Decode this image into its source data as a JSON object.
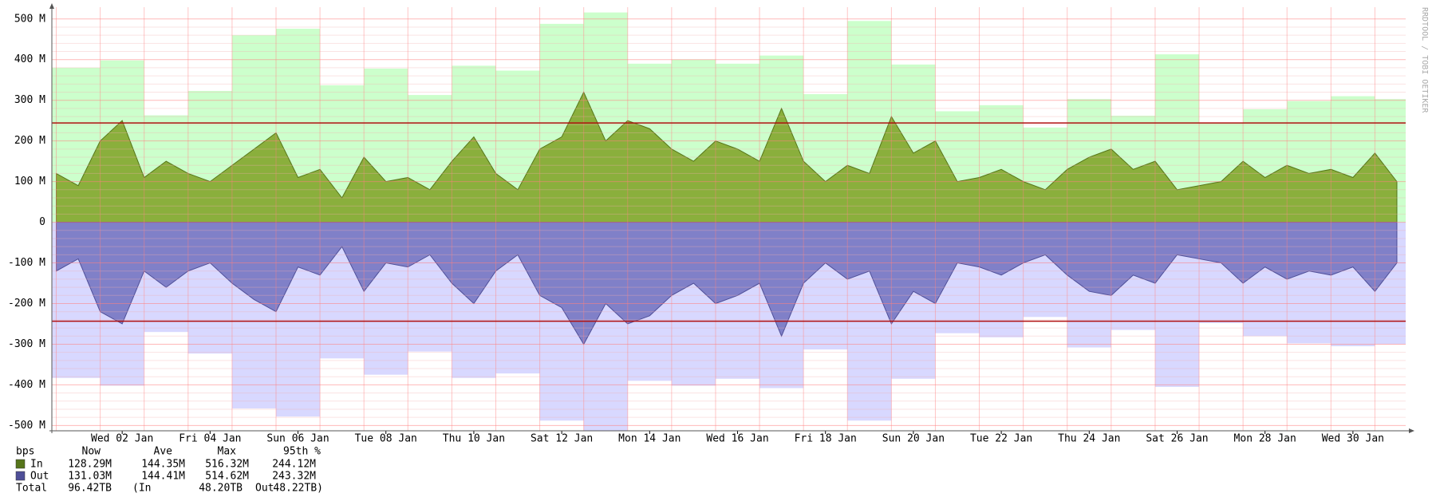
{
  "chart_data": {
    "type": "area",
    "watermark": "RRDTOOL / TOBI OETIKER",
    "xlim": [
      0.9,
      31.7
    ],
    "ylim": [
      -513,
      529
    ],
    "yticks": [
      {
        "value": 500,
        "label": "500 M"
      },
      {
        "value": 400,
        "label": "400 M"
      },
      {
        "value": 300,
        "label": "300 M"
      },
      {
        "value": 200,
        "label": "200 M"
      },
      {
        "value": 100,
        "label": "100 M"
      },
      0,
      {
        "value": -100,
        "label": "-100 M"
      },
      {
        "value": -200,
        "label": "-200 M"
      },
      {
        "value": -300,
        "label": "-300 M"
      },
      {
        "value": -400,
        "label": "-400 M"
      },
      {
        "value": -500,
        "label": "-500 M"
      }
    ],
    "xticks": [
      {
        "value": 2.5,
        "label": "Wed 02 Jan"
      },
      {
        "value": 4.5,
        "label": "Fri 04 Jan"
      },
      {
        "value": 6.5,
        "label": "Sun 06 Jan"
      },
      {
        "value": 8.5,
        "label": "Tue 08 Jan"
      },
      {
        "value": 10.5,
        "label": "Thu 10 Jan"
      },
      {
        "value": 12.5,
        "label": "Sat 12 Jan"
      },
      {
        "value": 14.5,
        "label": "Mon 14 Jan"
      },
      {
        "value": 16.5,
        "label": "Wed 16 Jan"
      },
      {
        "value": 18.5,
        "label": "Fri 18 Jan"
      },
      {
        "value": 20.5,
        "label": "Sun 20 Jan"
      },
      {
        "value": 22.5,
        "label": "Tue 22 Jan"
      },
      {
        "value": 24.5,
        "label": "Thu 24 Jan"
      },
      {
        "value": 26.5,
        "label": "Sat 26 Jan"
      },
      {
        "value": 28.5,
        "label": "Mon 28 Jan"
      },
      {
        "value": 30.5,
        "label": "Wed 30 Jan"
      }
    ],
    "grid": true,
    "x": [
      1,
      1.5,
      2,
      2.5,
      3,
      3.5,
      4,
      4.5,
      5,
      5.5,
      6,
      6.5,
      7,
      7.5,
      8,
      8.5,
      9,
      9.5,
      10,
      10.5,
      11,
      11.5,
      12,
      12.5,
      13,
      13.5,
      14,
      14.5,
      15,
      15.5,
      16,
      16.5,
      17,
      17.5,
      18,
      18.5,
      19,
      19.5,
      20,
      20.5,
      21,
      21.5,
      22,
      22.5,
      23,
      23.5,
      24,
      24.5,
      25,
      25.5,
      26,
      26.5,
      27,
      27.5,
      28,
      28.5,
      29,
      29.5,
      30,
      30.5,
      31,
      31.5
    ],
    "series": [
      {
        "name": "In",
        "color": "#8aaf3c",
        "stroke": "#56751a",
        "values": [
          120,
          90,
          200,
          250,
          110,
          150,
          120,
          100,
          140,
          180,
          220,
          110,
          130,
          60,
          160,
          100,
          110,
          80,
          150,
          210,
          120,
          80,
          180,
          210,
          320,
          200,
          250,
          230,
          180,
          150,
          200,
          180,
          150,
          280,
          150,
          100,
          140,
          120,
          260,
          170,
          200,
          100,
          110,
          130,
          100,
          80,
          130,
          160,
          180,
          130,
          150,
          80,
          90,
          100,
          150,
          110,
          140,
          120,
          130,
          110,
          170,
          100
        ]
      },
      {
        "name": "Out",
        "color": "#8080c8",
        "stroke": "#4f4f98",
        "values": [
          -120,
          -90,
          -220,
          -250,
          -120,
          -160,
          -120,
          -100,
          -150,
          -190,
          -220,
          -110,
          -130,
          -60,
          -170,
          -100,
          -110,
          -80,
          -150,
          -200,
          -120,
          -80,
          -180,
          -210,
          -300,
          -200,
          -250,
          -230,
          -180,
          -150,
          -200,
          -180,
          -150,
          -280,
          -150,
          -100,
          -140,
          -120,
          -250,
          -170,
          -200,
          -100,
          -110,
          -130,
          -100,
          -80,
          -130,
          -170,
          -180,
          -130,
          -150,
          -80,
          -90,
          -100,
          -150,
          -110,
          -140,
          -120,
          -130,
          -110,
          -170,
          -100
        ]
      }
    ],
    "max_steps": [
      {
        "color": "#ccffcc",
        "x": [
          0.9,
          2,
          3,
          4,
          5,
          6,
          7,
          8,
          9,
          10,
          11,
          12,
          13,
          14,
          15,
          16,
          17,
          18,
          19,
          20,
          21,
          22,
          23,
          24,
          25,
          26,
          27,
          28,
          29,
          30,
          31
        ],
        "values": [
          380,
          398,
          263,
          323,
          460,
          476,
          337,
          378,
          313,
          385,
          373,
          488,
          516,
          390,
          400,
          390,
          410,
          315,
          495,
          388,
          273,
          288,
          233,
          303,
          262,
          413,
          245,
          278,
          298,
          310,
          303
        ]
      },
      {
        "color": "#d8d8ff",
        "x": [
          0.9,
          2,
          3,
          4,
          5,
          6,
          7,
          8,
          9,
          10,
          11,
          12,
          13,
          14,
          15,
          16,
          17,
          18,
          19,
          20,
          21,
          22,
          23,
          24,
          25,
          26,
          27,
          28,
          29,
          30,
          31
        ],
        "values": [
          -383,
          -402,
          -270,
          -323,
          -458,
          -478,
          -335,
          -375,
          -318,
          -383,
          -372,
          -488,
          -512,
          -390,
          -402,
          -385,
          -408,
          -313,
          -488,
          -385,
          -273,
          -283,
          -233,
          -308,
          -265,
          -405,
          -248,
          -280,
          -298,
          -305,
          -300
        ]
      }
    ],
    "percentile_lines": {
      "color": "#b01010",
      "values": [
        244.12,
        -243.32
      ]
    },
    "legend": {
      "header": [
        "bps",
        "Now",
        "Ave",
        "Max",
        "95th %"
      ],
      "rows": [
        [
          "128.29M",
          "144.35M",
          "516.32M",
          "244.12M"
        ],
        [
          "131.03M",
          "144.41M",
          "514.62M",
          "243.32M"
        ]
      ],
      "total": [
        "Total",
        "96.42TB",
        "(In",
        "48.20TB",
        "Out",
        "48.22TB)"
      ]
    }
  }
}
